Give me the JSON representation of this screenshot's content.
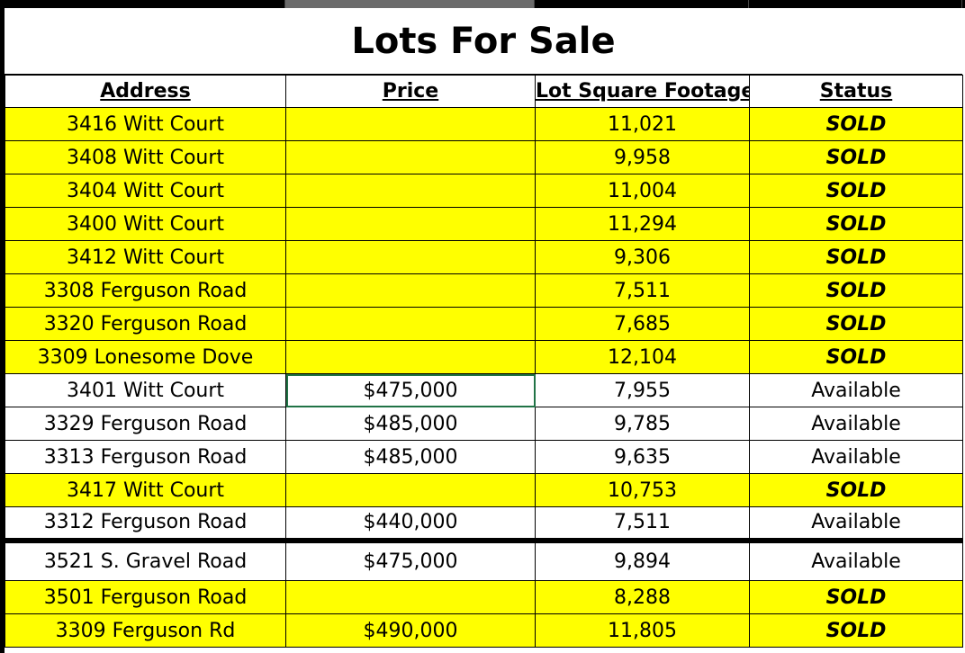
{
  "title": "Lots For Sale",
  "columns": {
    "address": "Address",
    "price": "Price",
    "sqft": "Lot Square Footage",
    "status": "Status"
  },
  "rows": [
    {
      "address": "3416 Witt Court",
      "price": "",
      "sqft": "11,021",
      "status": "SOLD"
    },
    {
      "address": "3408 Witt Court",
      "price": "",
      "sqft": "9,958",
      "status": "SOLD"
    },
    {
      "address": "3404 Witt Court",
      "price": "",
      "sqft": "11,004",
      "status": "SOLD"
    },
    {
      "address": "3400 Witt Court",
      "price": "",
      "sqft": "11,294",
      "status": "SOLD"
    },
    {
      "address": "3412 Witt Court",
      "price": "",
      "sqft": "9,306",
      "status": "SOLD"
    },
    {
      "address": "3308 Ferguson Road",
      "price": "",
      "sqft": "7,511",
      "status": "SOLD"
    },
    {
      "address": "3320 Ferguson Road",
      "price": "",
      "sqft": "7,685",
      "status": "SOLD"
    },
    {
      "address": "3309 Lonesome Dove",
      "price": "",
      "sqft": "12,104",
      "status": "SOLD"
    },
    {
      "address": "3401 Witt Court",
      "price": "$475,000",
      "sqft": "7,955",
      "status": "Available"
    },
    {
      "address": "3329 Ferguson Road",
      "price": "$485,000",
      "sqft": "9,785",
      "status": "Available"
    },
    {
      "address": "3313 Ferguson Road",
      "price": "$485,000",
      "sqft": "9,635",
      "status": "Available"
    },
    {
      "address": "3417 Witt Court",
      "price": "",
      "sqft": "10,753",
      "status": "SOLD"
    },
    {
      "address": "3312 Ferguson Road",
      "price": "$440,000",
      "sqft": "7,511",
      "status": "Available"
    },
    {
      "address": "3521 S. Gravel Road",
      "price": "$475,000",
      "sqft": "9,894",
      "status": "Available"
    },
    {
      "address": "3501 Ferguson Road",
      "price": "",
      "sqft": "8,288",
      "status": "SOLD"
    },
    {
      "address": "3309 Ferguson Rd",
      "price": "$490,000",
      "sqft": "11,805",
      "status": "SOLD"
    }
  ],
  "colors": {
    "sold_fill": "#ffff00",
    "available_fill": "#ffffff",
    "selection_border": "#217346",
    "separator": "#000000"
  }
}
